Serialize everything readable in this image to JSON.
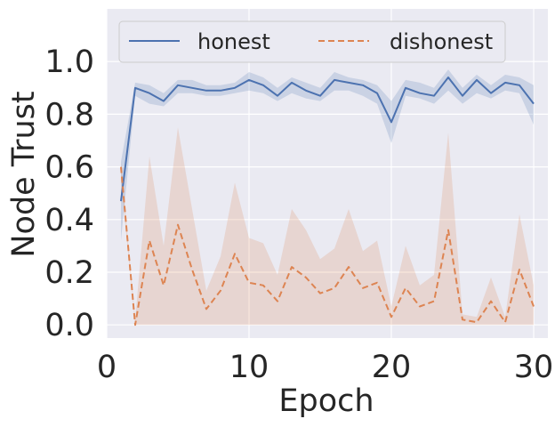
{
  "chart_data": {
    "type": "line",
    "xlabel": "Epoch",
    "ylabel": "Node Trust",
    "xlim": [
      0,
      31
    ],
    "ylim": [
      -0.05,
      1.2
    ],
    "xticks": [
      0,
      10,
      20,
      30
    ],
    "xtick_labels": [
      "0",
      "10",
      "20",
      "30"
    ],
    "yticks": [
      0.0,
      0.2,
      0.4,
      0.6,
      0.8,
      1.0
    ],
    "ytick_labels": [
      "0.0",
      "0.2",
      "0.4",
      "0.6",
      "0.8",
      "1.0"
    ],
    "grid": true,
    "legend_position": "top",
    "background_color": "#eaeaf2",
    "x": [
      1,
      2,
      3,
      4,
      5,
      6,
      7,
      8,
      9,
      10,
      11,
      12,
      13,
      14,
      15,
      16,
      17,
      18,
      19,
      20,
      21,
      22,
      23,
      24,
      25,
      26,
      27,
      28,
      29,
      30
    ],
    "series": [
      {
        "name": "honest",
        "color": "#4c72b0",
        "style": "solid",
        "values": [
          0.47,
          0.9,
          0.88,
          0.85,
          0.91,
          0.9,
          0.89,
          0.89,
          0.9,
          0.93,
          0.91,
          0.87,
          0.92,
          0.89,
          0.87,
          0.93,
          0.92,
          0.91,
          0.88,
          0.77,
          0.9,
          0.88,
          0.87,
          0.94,
          0.87,
          0.93,
          0.88,
          0.92,
          0.91,
          0.84
        ],
        "ci_low": [
          0.32,
          0.87,
          0.84,
          0.83,
          0.88,
          0.88,
          0.87,
          0.87,
          0.88,
          0.89,
          0.88,
          0.85,
          0.88,
          0.86,
          0.85,
          0.89,
          0.89,
          0.87,
          0.84,
          0.69,
          0.87,
          0.86,
          0.84,
          0.89,
          0.84,
          0.88,
          0.86,
          0.89,
          0.88,
          0.76
        ],
        "ci_high": [
          0.62,
          0.92,
          0.91,
          0.88,
          0.93,
          0.93,
          0.91,
          0.91,
          0.92,
          0.96,
          0.94,
          0.9,
          0.94,
          0.92,
          0.9,
          0.96,
          0.94,
          0.93,
          0.91,
          0.85,
          0.93,
          0.92,
          0.9,
          0.97,
          0.9,
          0.95,
          0.91,
          0.95,
          0.94,
          0.91
        ]
      },
      {
        "name": "dishonest",
        "color": "#dd8452",
        "style": "dashed",
        "values": [
          0.6,
          0.0,
          0.32,
          0.15,
          0.38,
          0.21,
          0.06,
          0.13,
          0.27,
          0.16,
          0.15,
          0.09,
          0.22,
          0.18,
          0.12,
          0.14,
          0.22,
          0.14,
          0.16,
          0.03,
          0.14,
          0.07,
          0.09,
          0.36,
          0.02,
          0.01,
          0.09,
          0.01,
          0.21,
          0.07
        ],
        "ci_low": [
          0.55,
          0.0,
          0.0,
          0.0,
          0.0,
          0.0,
          0.0,
          0.0,
          0.0,
          0.0,
          0.0,
          0.0,
          0.0,
          0.0,
          0.0,
          0.0,
          0.0,
          0.0,
          0.0,
          0.0,
          0.0,
          0.0,
          0.0,
          0.0,
          0.0,
          0.0,
          0.0,
          0.0,
          0.0,
          0.0
        ],
        "ci_high": [
          0.62,
          0.02,
          0.64,
          0.3,
          0.75,
          0.44,
          0.13,
          0.26,
          0.54,
          0.33,
          0.31,
          0.19,
          0.44,
          0.36,
          0.25,
          0.29,
          0.44,
          0.28,
          0.32,
          0.07,
          0.3,
          0.15,
          0.19,
          0.73,
          0.04,
          0.03,
          0.18,
          0.03,
          0.42,
          0.15
        ]
      }
    ]
  }
}
